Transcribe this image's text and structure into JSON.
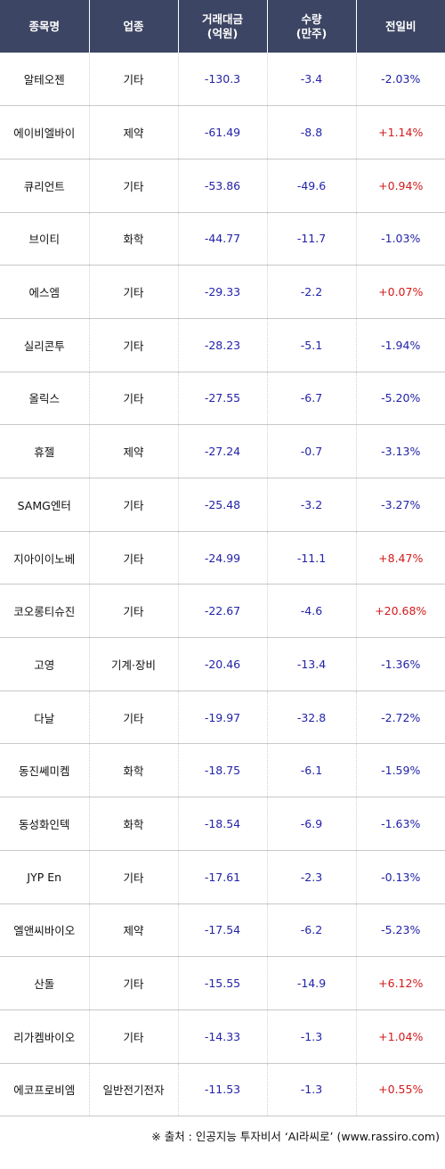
{
  "headers": [
    "종목명",
    "업종",
    "거래대금\n(억원)",
    "수량\n(만주)",
    "전일비"
  ],
  "rows": [
    {
      "name": "알테오젠",
      "sector": "기타",
      "amount": "-130.3",
      "qty": "-3.4",
      "change": "-2.03%"
    },
    {
      "name": "에이비엘바이",
      "sector": "제약",
      "amount": "-61.49",
      "qty": "-8.8",
      "change": "+1.14%"
    },
    {
      "name": "큐리언트",
      "sector": "기타",
      "amount": "-53.86",
      "qty": "-49.6",
      "change": "+0.94%"
    },
    {
      "name": "브이티",
      "sector": "화학",
      "amount": "-44.77",
      "qty": "-11.7",
      "change": "-1.03%"
    },
    {
      "name": "에스엠",
      "sector": "기타",
      "amount": "-29.33",
      "qty": "-2.2",
      "change": "+0.07%"
    },
    {
      "name": "실리콘투",
      "sector": "기타",
      "amount": "-28.23",
      "qty": "-5.1",
      "change": "-1.94%"
    },
    {
      "name": "올릭스",
      "sector": "기타",
      "amount": "-27.55",
      "qty": "-6.7",
      "change": "-5.20%"
    },
    {
      "name": "휴젤",
      "sector": "제약",
      "amount": "-27.24",
      "qty": "-0.7",
      "change": "-3.13%"
    },
    {
      "name": "SAMG엔터",
      "sector": "기타",
      "amount": "-25.48",
      "qty": "-3.2",
      "change": "-3.27%"
    },
    {
      "name": "지아이이노베",
      "sector": "기타",
      "amount": "-24.99",
      "qty": "-11.1",
      "change": "+8.47%"
    },
    {
      "name": "코오롱티슈진",
      "sector": "기타",
      "amount": "-22.67",
      "qty": "-4.6",
      "change": "+20.68%"
    },
    {
      "name": "고영",
      "sector": "기계·장비",
      "amount": "-20.46",
      "qty": "-13.4",
      "change": "-1.36%"
    },
    {
      "name": "다날",
      "sector": "기타",
      "amount": "-19.97",
      "qty": "-32.8",
      "change": "-2.72%"
    },
    {
      "name": "동진쎄미켐",
      "sector": "화학",
      "amount": "-18.75",
      "qty": "-6.1",
      "change": "-1.59%"
    },
    {
      "name": "동성화인텍",
      "sector": "화학",
      "amount": "-18.54",
      "qty": "-6.9",
      "change": "-1.63%"
    },
    {
      "name": "JYP En",
      "sector": "기타",
      "amount": "-17.61",
      "qty": "-2.3",
      "change": "-0.13%"
    },
    {
      "name": "엘앤씨바이오",
      "sector": "제약",
      "amount": "-17.54",
      "qty": "-6.2",
      "change": "-5.23%"
    },
    {
      "name": "산돌",
      "sector": "기타",
      "amount": "-15.55",
      "qty": "-14.9",
      "change": "+6.12%"
    },
    {
      "name": "리가켐바이오",
      "sector": "기타",
      "amount": "-14.33",
      "qty": "-1.3",
      "change": "+1.04%"
    },
    {
      "name": "에코프로비엠",
      "sector": "일반전기전자",
      "amount": "-11.53",
      "qty": "-1.3",
      "change": "+0.55%"
    }
  ],
  "source": "※ 출처 : 인공지능 투자비서 ‘AI라씨로’ (www.rassiro.com)",
  "colors": {
    "header_bg": "#3c4563",
    "up": "#d21a1a",
    "down": "#2222aa"
  }
}
